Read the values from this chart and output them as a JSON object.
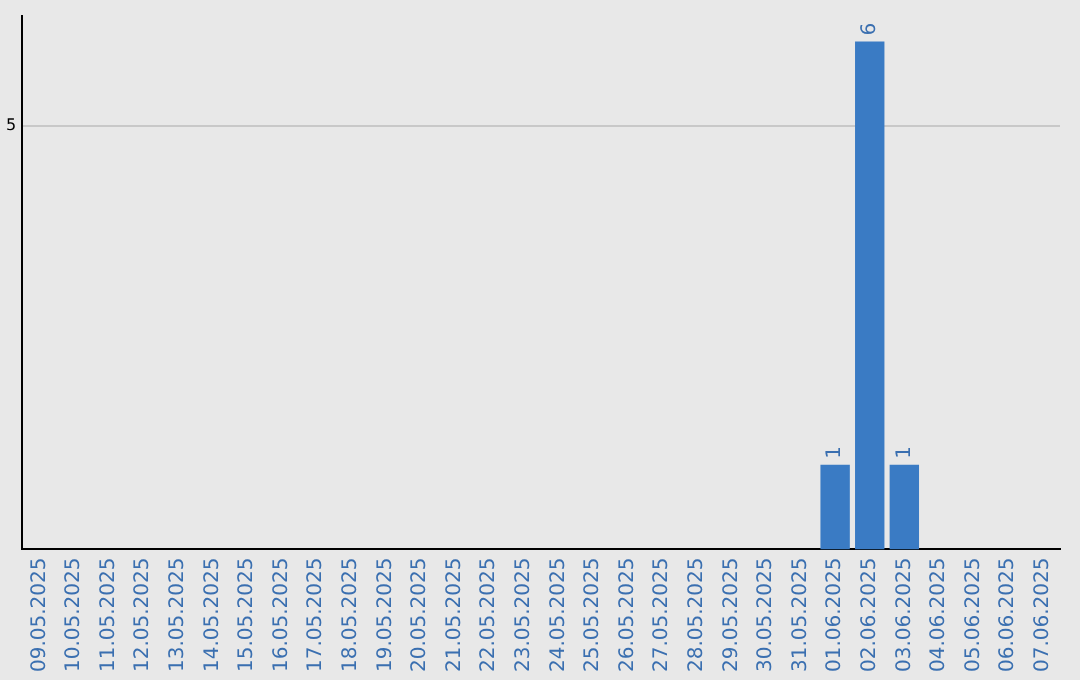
{
  "chart_data": {
    "type": "bar",
    "categories": [
      "09.05.2025",
      "10.05.2025",
      "11.05.2025",
      "12.05.2025",
      "13.05.2025",
      "14.05.2025",
      "15.05.2025",
      "16.05.2025",
      "17.05.2025",
      "18.05.2025",
      "19.05.2025",
      "20.05.2025",
      "21.05.2025",
      "22.05.2025",
      "23.05.2025",
      "24.05.2025",
      "25.05.2025",
      "26.05.2025",
      "27.05.2025",
      "28.05.2025",
      "29.05.2025",
      "30.05.2025",
      "31.05.2025",
      "01.06.2025",
      "02.06.2025",
      "03.06.2025",
      "04.06.2025",
      "05.06.2025",
      "06.06.2025",
      "07.06.2025"
    ],
    "values": [
      null,
      null,
      null,
      null,
      null,
      null,
      null,
      null,
      null,
      null,
      null,
      null,
      null,
      null,
      null,
      null,
      null,
      null,
      null,
      null,
      null,
      null,
      null,
      1,
      6,
      1,
      null,
      null,
      null,
      null
    ],
    "color": "#3a7bc4",
    "ylim": [
      0,
      6.3
    ],
    "yticks": [
      5
    ],
    "grid": "y",
    "data_labels": true,
    "legend": false
  }
}
